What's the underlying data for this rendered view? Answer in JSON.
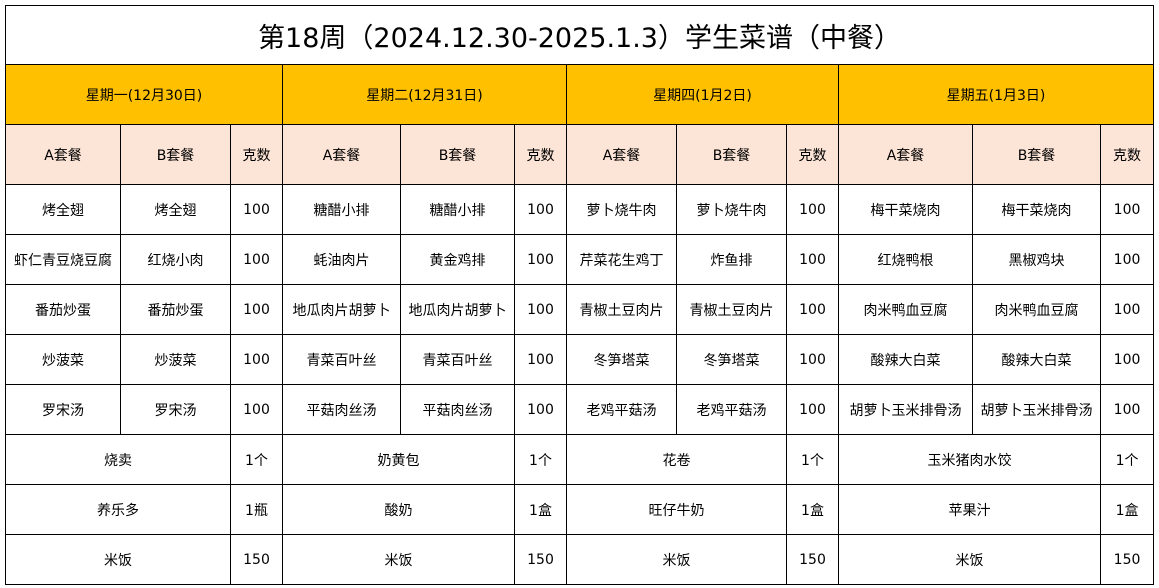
{
  "title": "第18周（2024.12.30-2025.1.3）学生菜谱（中餐）",
  "colors": {
    "day_header": "#FFC000",
    "sub_header": "#FCE4D6"
  },
  "sub_headers": {
    "a": "A套餐",
    "b": "B套餐",
    "qty": "克数"
  },
  "days": [
    {
      "label": "星期一(12月30日)",
      "dishes": [
        {
          "a": "烤全翅",
          "b": "烤全翅",
          "qty": "100"
        },
        {
          "a": "虾仁青豆烧豆腐",
          "b": "红烧小肉",
          "qty": "100"
        },
        {
          "a": "番茄炒蛋",
          "b": "番茄炒蛋",
          "qty": "100"
        },
        {
          "a": "炒菠菜",
          "b": "炒菠菜",
          "qty": "100"
        },
        {
          "a": "罗宋汤",
          "b": "罗宋汤",
          "qty": "100"
        }
      ],
      "extras": [
        {
          "name": "烧卖",
          "qty": "1个"
        },
        {
          "name": "养乐多",
          "qty": "1瓶"
        },
        {
          "name": "米饭",
          "qty": "150"
        }
      ]
    },
    {
      "label": "星期二(12月31日)",
      "dishes": [
        {
          "a": "糖醋小排",
          "b": "糖醋小排",
          "qty": "100"
        },
        {
          "a": "蚝油肉片",
          "b": "黄金鸡排",
          "qty": "100"
        },
        {
          "a": "地瓜肉片胡萝卜",
          "b": "地瓜肉片胡萝卜",
          "qty": "100"
        },
        {
          "a": "青菜百叶丝",
          "b": "青菜百叶丝",
          "qty": "100"
        },
        {
          "a": "平菇肉丝汤",
          "b": "平菇肉丝汤",
          "qty": "100"
        }
      ],
      "extras": [
        {
          "name": "奶黄包",
          "qty": "1个"
        },
        {
          "name": "酸奶",
          "qty": "1盒"
        },
        {
          "name": "米饭",
          "qty": "150"
        }
      ]
    },
    {
      "label": "星期四(1月2日)",
      "dishes": [
        {
          "a": "萝卜烧牛肉",
          "b": "萝卜烧牛肉",
          "qty": "100"
        },
        {
          "a": "芹菜花生鸡丁",
          "b": "炸鱼排",
          "qty": "100"
        },
        {
          "a": "青椒土豆肉片",
          "b": "青椒土豆肉片",
          "qty": "100"
        },
        {
          "a": "冬笋塔菜",
          "b": "冬笋塔菜",
          "qty": "100"
        },
        {
          "a": "老鸡平菇汤",
          "b": "老鸡平菇汤",
          "qty": "100"
        }
      ],
      "extras": [
        {
          "name": "花卷",
          "qty": "1个"
        },
        {
          "name": "旺仔牛奶",
          "qty": "1盒"
        },
        {
          "name": "米饭",
          "qty": "150"
        }
      ]
    },
    {
      "label": "星期五(1月3日)",
      "dishes": [
        {
          "a": "梅干菜烧肉",
          "b": "梅干菜烧肉",
          "qty": "100"
        },
        {
          "a": "红烧鸭根",
          "b": "黑椒鸡块",
          "qty": "100"
        },
        {
          "a": "肉米鸭血豆腐",
          "b": "肉米鸭血豆腐",
          "qty": "100"
        },
        {
          "a": "酸辣大白菜",
          "b": "酸辣大白菜",
          "qty": "100"
        },
        {
          "a": "胡萝卜玉米排骨汤",
          "b": "胡萝卜玉米排骨汤",
          "qty": "100"
        }
      ],
      "extras": [
        {
          "name": "玉米猪肉水饺",
          "qty": "1个"
        },
        {
          "name": "苹果汁",
          "qty": "1盒"
        },
        {
          "name": "米饭",
          "qty": "150"
        }
      ]
    }
  ]
}
